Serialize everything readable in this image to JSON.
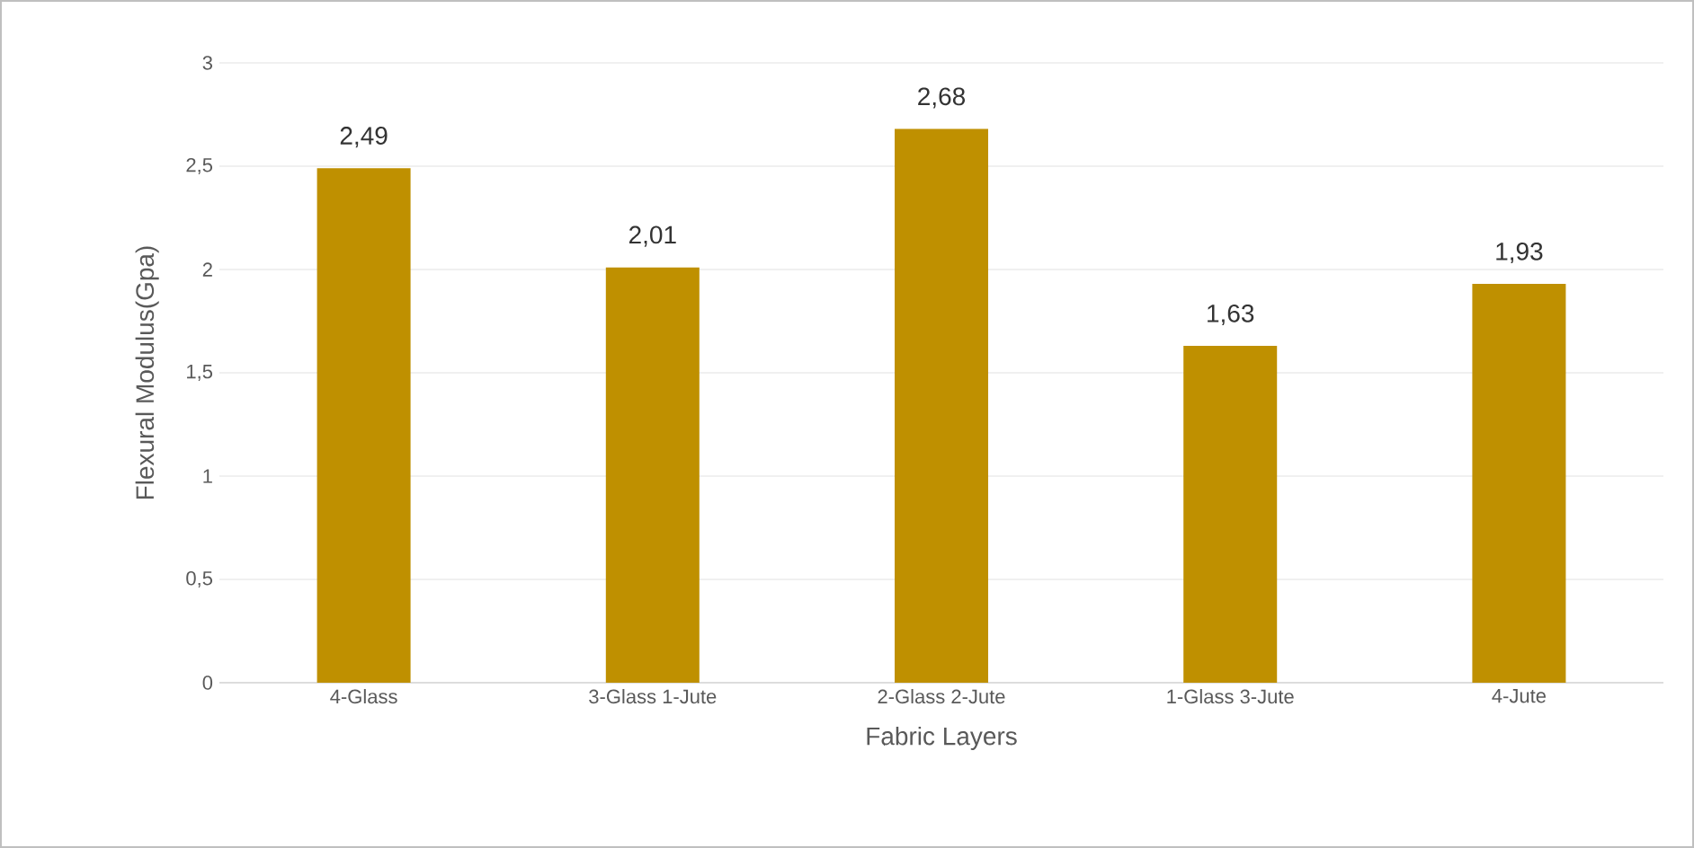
{
  "chart_data": {
    "type": "bar",
    "xlabel": "Fabric Layers",
    "ylabel": "Flexural Modulus(Gpa)",
    "categories": [
      "4-Glass",
      "3-Glass 1-Jute",
      "2-Glass 2-Jute",
      "1-Glass 3-Jute",
      "4-Jute"
    ],
    "values": [
      2.49,
      2.01,
      2.68,
      1.63,
      1.93
    ],
    "value_labels": [
      "2,49",
      "2,01",
      "2,68",
      "1,63",
      "1,93"
    ],
    "color": "#bf9000",
    "ylim": [
      0,
      3
    ],
    "yticks": [
      0,
      {
        "value": 0.5,
        "label": "0,5"
      },
      1,
      {
        "value": 1.5,
        "label": "1,5"
      },
      2,
      {
        "value": 2.5,
        "label": "2,5"
      },
      3
    ],
    "grid": "y"
  }
}
